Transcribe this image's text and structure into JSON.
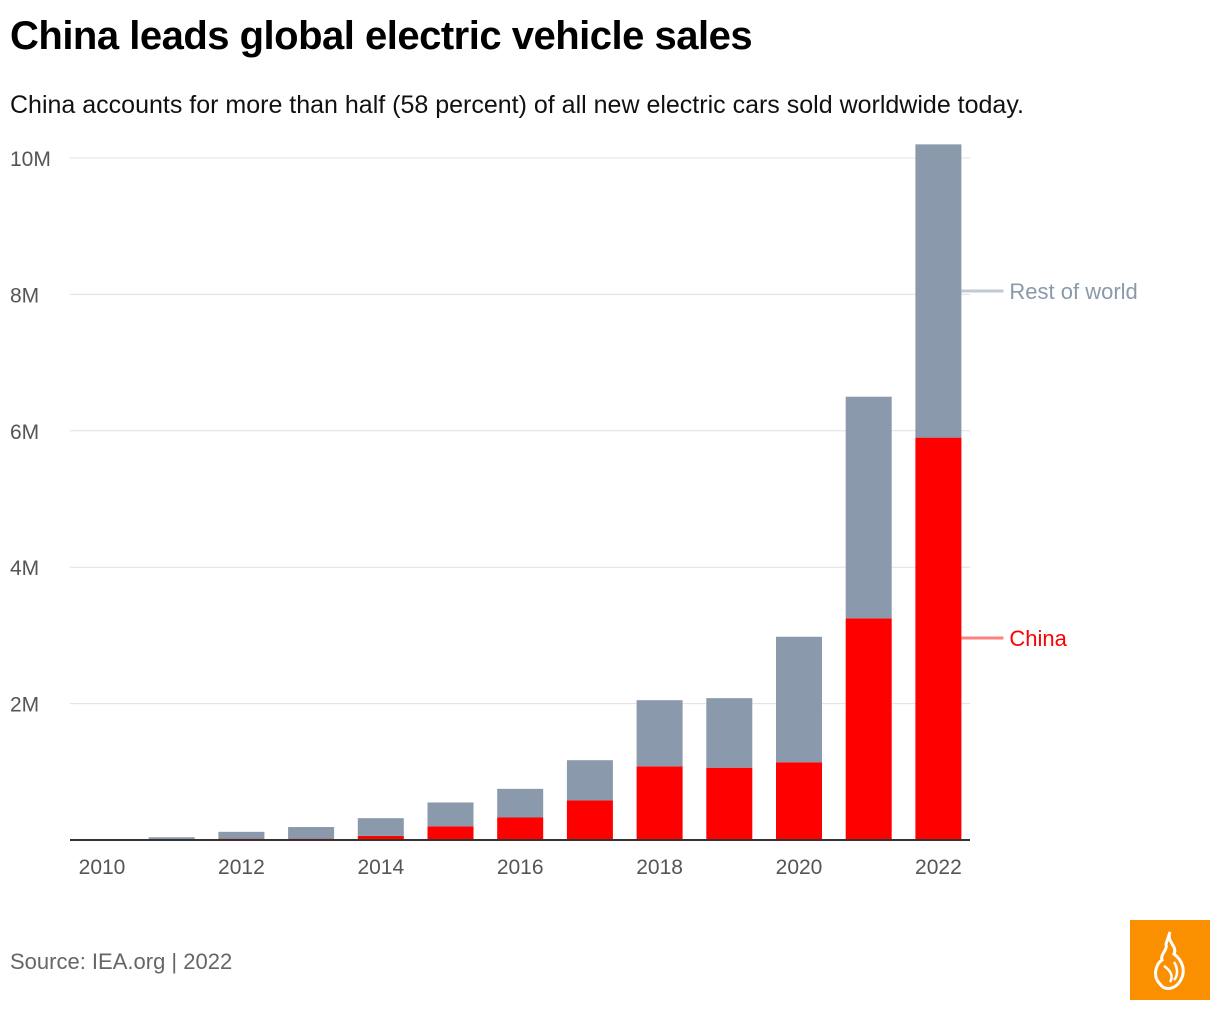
{
  "title": "China leads global electric vehicle sales",
  "subtitle": "China accounts for more than half (58 percent) of all new electric cars sold worldwide today.",
  "source": "Source: IEA.org | 2022",
  "logo": "Al Jazeera",
  "colors": {
    "china": "#ff0000",
    "rest_of_world": "#8a99ab",
    "logo_bg": "#fa9000"
  },
  "chart_data": {
    "type": "bar",
    "stacked": true,
    "title": "China leads global electric vehicle sales",
    "categories": [
      "2010",
      "2011",
      "2012",
      "2013",
      "2014",
      "2015",
      "2016",
      "2017",
      "2018",
      "2019",
      "2020",
      "2021",
      "2022"
    ],
    "x_tick_labels": [
      "2010",
      "2012",
      "2014",
      "2016",
      "2018",
      "2020",
      "2022"
    ],
    "y_tick_labels": [
      "2M",
      "4M",
      "6M",
      "8M",
      "10M"
    ],
    "y_ticks": [
      2,
      4,
      6,
      8,
      10
    ],
    "ylim": [
      0,
      10.2
    ],
    "yunit": "M",
    "grid": true,
    "legend_placement": "right, inline labels",
    "series": [
      {
        "name": "China",
        "color": "#ff0000",
        "values": [
          0,
          0.01,
          0.02,
          0.02,
          0.06,
          0.2,
          0.33,
          0.58,
          1.08,
          1.06,
          1.14,
          3.25,
          5.9
        ]
      },
      {
        "name": "Rest of world",
        "color": "#8a99ab",
        "values": [
          0.01,
          0.03,
          0.1,
          0.17,
          0.26,
          0.35,
          0.42,
          0.59,
          0.97,
          1.02,
          1.84,
          3.25,
          4.3
        ]
      }
    ]
  }
}
